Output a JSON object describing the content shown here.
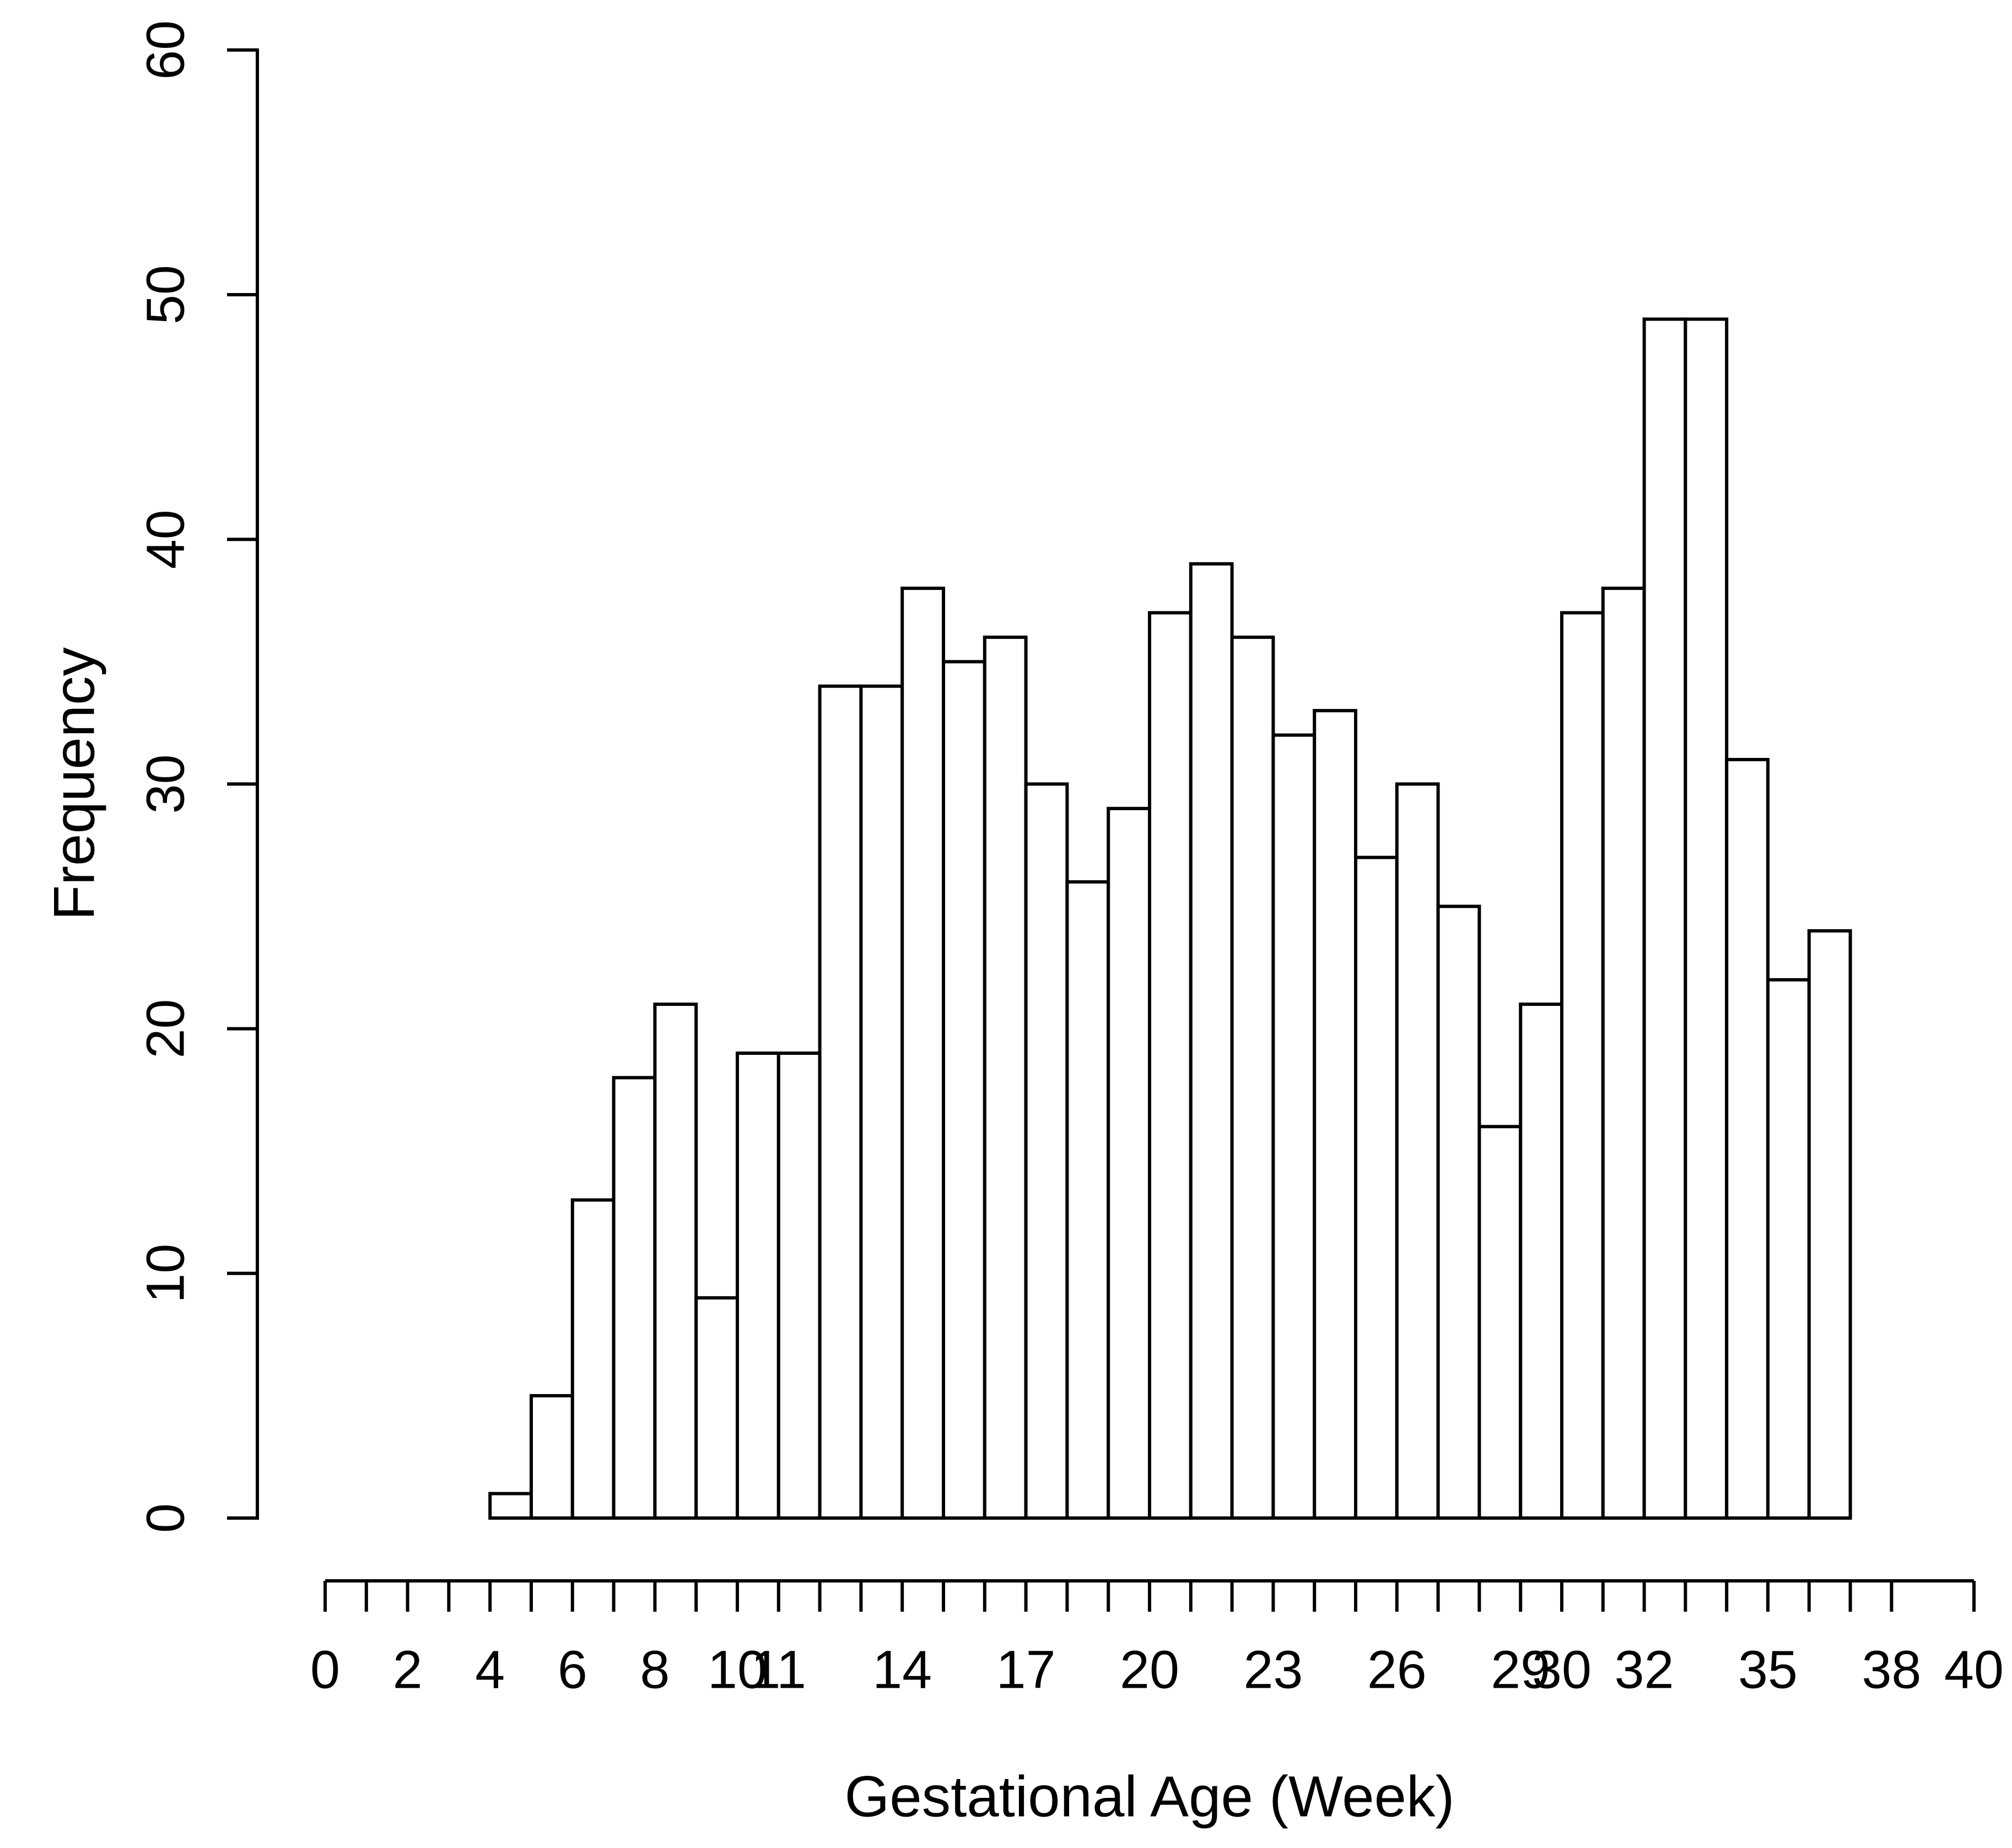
{
  "page": {
    "background": "#ffffff",
    "ink_color": "#000000"
  },
  "chart_data": {
    "type": "bar",
    "subtype": "histogram",
    "title": "",
    "xlabel": "Gestational Age (Week)",
    "ylabel": "Frequency",
    "grid": false,
    "legend": "none",
    "bar_fill": "#ffffff",
    "bar_stroke": "#000000",
    "bin_width": 1,
    "bin_left_edges": [
      4,
      5,
      6,
      7,
      8,
      9,
      10,
      11,
      12,
      13,
      14,
      15,
      16,
      17,
      18,
      19,
      20,
      21,
      22,
      23,
      24,
      25,
      26,
      27,
      28,
      29,
      30,
      31,
      32,
      33,
      34,
      35,
      36
    ],
    "frequencies": [
      1,
      5,
      13,
      18,
      21,
      9,
      19,
      19,
      34,
      34,
      38,
      35,
      36,
      30,
      26,
      29,
      37,
      39,
      36,
      32,
      33,
      27,
      30,
      25,
      16,
      21,
      37,
      38,
      49,
      49,
      31,
      22,
      24
    ],
    "x_axis": {
      "range": [
        0,
        40
      ],
      "tick_values": [
        0,
        1,
        2,
        3,
        4,
        5,
        6,
        7,
        8,
        9,
        10,
        11,
        12,
        13,
        14,
        15,
        16,
        17,
        18,
        19,
        20,
        21,
        22,
        23,
        24,
        25,
        26,
        27,
        28,
        29,
        30,
        31,
        32,
        33,
        34,
        35,
        36,
        37,
        38,
        40
      ],
      "label_values": [
        0,
        2,
        4,
        6,
        8,
        10,
        11,
        14,
        17,
        20,
        23,
        26,
        29,
        30,
        32,
        35,
        38,
        40
      ]
    },
    "y_axis": {
      "range": [
        0,
        60
      ],
      "tick_values": [
        0,
        10,
        20,
        30,
        40,
        50,
        60
      ]
    }
  }
}
